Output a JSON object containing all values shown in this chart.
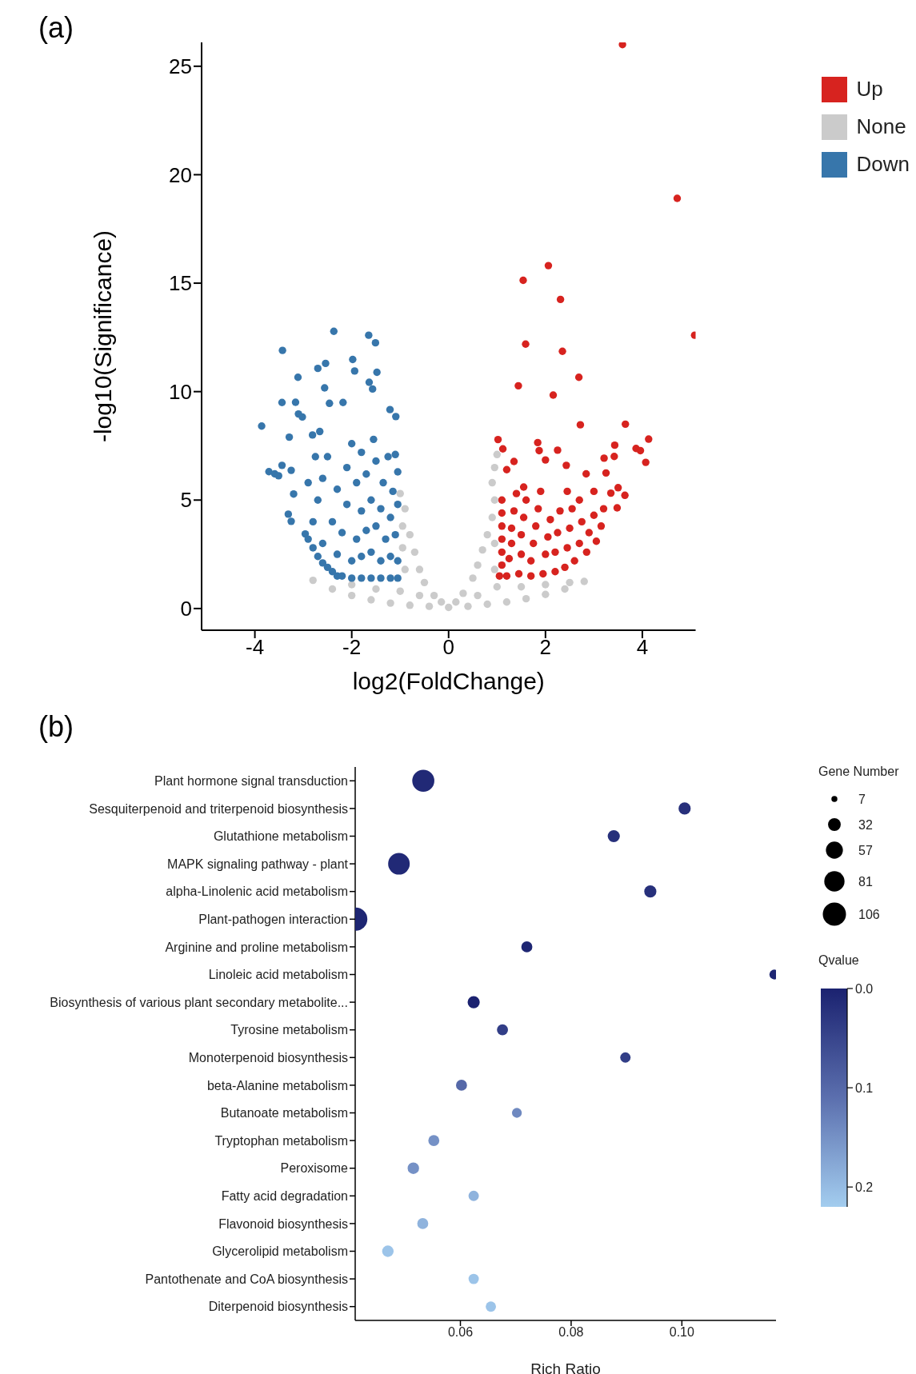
{
  "chart_data": [
    {
      "type": "scatter",
      "title": "(a)",
      "xlabel": "log2(FoldChange)",
      "ylabel": "-log10(Significance)",
      "xlim": [
        -5.1,
        5.1
      ],
      "xticks": [
        -4,
        -2,
        0,
        2,
        4
      ],
      "ylim": [
        -1,
        26.1
      ],
      "yticks": [
        0,
        5,
        10,
        15,
        20,
        25
      ],
      "legend": "top right",
      "marker": "circle",
      "series": [
        {
          "name": "Up",
          "color": "#d7231f",
          "x": [
            3.59,
            4.72,
            2.06,
            1.54,
            2.31,
            5.08,
            1.59,
            2.35,
            2.69,
            1.44,
            2.16,
            2.72,
            3.65,
            4.13,
            3.87,
            3.96,
            4.07,
            1.02,
            1.12,
            1.84,
            1.87,
            2.25,
            3.43,
            3.42,
            3.21,
            2.43,
            2.84,
            3.25,
            1.35,
            2.0,
            3.64,
            3.5,
            3.48,
            3.35,
            1.2,
            1.55,
            2.45,
            2.7,
            3.0,
            1.05,
            1.1,
            1.1,
            1.1,
            1.1,
            1.1,
            1.1,
            1.2,
            1.25,
            1.3,
            1.3,
            1.35,
            1.4,
            1.45,
            1.5,
            1.5,
            1.55,
            1.6,
            1.7,
            1.7,
            1.75,
            1.8,
            1.85,
            1.9,
            1.95,
            2.0,
            2.05,
            2.1,
            2.2,
            2.2,
            2.25,
            2.3,
            2.4,
            2.45,
            2.5,
            2.55,
            2.6,
            2.7,
            2.75,
            2.85,
            2.9,
            3.0,
            3.05,
            3.15,
            3.2
          ],
          "values": [
            26.0,
            18.91,
            15.81,
            15.13,
            14.25,
            12.6,
            12.19,
            11.86,
            10.66,
            10.27,
            9.84,
            8.47,
            8.5,
            7.81,
            7.38,
            7.28,
            6.74,
            7.79,
            7.36,
            7.65,
            7.28,
            7.3,
            7.53,
            7.01,
            6.93,
            6.6,
            6.21,
            6.25,
            6.78,
            6.85,
            5.22,
            5.57,
            4.64,
            5.32,
            6.4,
            5.6,
            5.4,
            5.0,
            5.4,
            1.5,
            2.0,
            2.6,
            3.2,
            3.8,
            4.4,
            5.0,
            1.5,
            2.3,
            3.0,
            3.7,
            4.5,
            5.3,
            1.6,
            2.5,
            3.4,
            4.2,
            5.0,
            1.5,
            2.2,
            3.0,
            3.8,
            4.6,
            5.4,
            1.6,
            2.5,
            3.3,
            4.1,
            1.7,
            2.6,
            3.5,
            4.5,
            1.9,
            2.8,
            3.7,
            4.6,
            2.2,
            3.0,
            4.0,
            2.6,
            3.5,
            4.3,
            3.1,
            3.8,
            4.6
          ]
        },
        {
          "name": "None",
          "color": "#cbcbcb",
          "x": [
            -2.8,
            -2.4,
            -2.0,
            -1.6,
            -1.2,
            -0.8,
            -0.4,
            0,
            0.4,
            0.8,
            1.2,
            1.6,
            2.0,
            2.4,
            2.8,
            -2.0,
            -1.5,
            -1.0,
            -0.9,
            -0.95,
            -0.95,
            -0.9,
            -0.8,
            -0.7,
            -0.6,
            -0.5,
            -0.3,
            -0.15,
            0.15,
            0.3,
            0.5,
            0.6,
            0.7,
            0.8,
            0.9,
            0.95,
            0.9,
            0.95,
            1.0,
            0.95,
            0.95,
            1.0,
            1.5,
            2.0,
            2.5,
            -0.6,
            0.6,
            -1.0
          ],
          "values": [
            1.3,
            0.9,
            0.6,
            0.4,
            0.25,
            0.15,
            0.1,
            0.05,
            0.1,
            0.2,
            0.3,
            0.45,
            0.65,
            0.9,
            1.25,
            1.1,
            0.9,
            0.8,
            1.8,
            2.8,
            3.8,
            4.6,
            3.4,
            2.6,
            1.8,
            1.2,
            0.6,
            0.3,
            0.3,
            0.7,
            1.4,
            2.0,
            2.7,
            3.4,
            4.2,
            5.0,
            5.8,
            6.5,
            7.1,
            3.0,
            1.8,
            1.0,
            1.0,
            1.1,
            1.2,
            0.6,
            0.6,
            5.3
          ]
        },
        {
          "name": "Down",
          "color": "#3776ab",
          "x": [
            -2.37,
            -1.65,
            -1.51,
            -3.43,
            -1.98,
            -2.54,
            -2.7,
            -1.94,
            -1.48,
            -3.11,
            -1.64,
            -2.56,
            -1.57,
            -3.44,
            -3.16,
            -2.46,
            -2.18,
            -3.86,
            -3.71,
            -3.59,
            -3.51,
            -3.44,
            -3.25,
            -3.29,
            -3.1,
            -3.02,
            -3.2,
            -3.31,
            -3.25,
            -2.96,
            -1.21,
            -1.09,
            -2.81,
            -2.66,
            -2.9,
            -2.8,
            -2.7,
            -2.6,
            -2.5,
            -2.4,
            -2.3,
            -2.2,
            -2.0,
            -1.8,
            -1.6,
            -1.4,
            -1.2,
            -1.05,
            -2.8,
            -2.7,
            -2.6,
            -2.5,
            -2.6,
            -2.4,
            -2.3,
            -2.3,
            -2.2,
            -2.1,
            -2.1,
            -2.0,
            -2.0,
            -1.9,
            -1.9,
            -1.8,
            -1.8,
            -1.8,
            -1.7,
            -1.7,
            -1.6,
            -1.6,
            -1.55,
            -1.5,
            -1.5,
            -1.4,
            -1.4,
            -1.35,
            -1.3,
            -1.25,
            -1.2,
            -1.2,
            -1.15,
            -1.1,
            -1.05,
            -1.05,
            -1.05,
            -1.1,
            -2.9,
            -2.75
          ],
          "values": [
            12.78,
            12.6,
            12.25,
            11.9,
            11.48,
            11.3,
            11.07,
            10.95,
            10.89,
            10.66,
            10.43,
            10.17,
            10.12,
            9.5,
            9.51,
            9.46,
            9.5,
            8.41,
            6.31,
            6.21,
            6.12,
            6.6,
            6.37,
            7.9,
            8.97,
            8.83,
            5.28,
            4.35,
            4.02,
            3.44,
            9.17,
            8.85,
            8.0,
            8.16,
            3.2,
            2.8,
            2.4,
            2.1,
            1.9,
            1.7,
            1.5,
            1.5,
            1.4,
            1.4,
            1.4,
            1.4,
            1.4,
            1.4,
            4.0,
            5.0,
            6.0,
            7.0,
            3.0,
            4.0,
            5.5,
            2.5,
            3.5,
            4.8,
            6.5,
            7.6,
            2.2,
            3.2,
            5.8,
            4.5,
            7.2,
            2.4,
            3.6,
            6.2,
            5.0,
            2.6,
            7.8,
            3.8,
            6.8,
            2.2,
            4.6,
            5.8,
            3.2,
            7.0,
            2.4,
            4.2,
            5.4,
            3.4,
            2.2,
            4.8,
            6.3,
            7.1,
            5.8,
            7.0
          ]
        }
      ]
    },
    {
      "type": "bubble",
      "title": "(b)",
      "xlabel": "Rich Ratio",
      "legend_title": "Gene Number",
      "clabel": "Qvalue",
      "orientation": "horizontal",
      "categories": [
        "Plant hormone signal transduction",
        "Sesquiterpenoid and triterpenoid biosynthesis",
        "Glutathione metabolism",
        "MAPK signaling pathway - plant",
        "alpha-Linolenic acid metabolism",
        "Plant-pathogen interaction",
        "Arginine and proline metabolism",
        "Linoleic acid metabolism",
        "Biosynthesis of various plant secondary metabolite...",
        "Tyrosine metabolism",
        "Monoterpenoid biosynthesis",
        "beta-Alanine metabolism",
        "Butanoate metabolism",
        "Tryptophan metabolism",
        "Peroxisome",
        "Fatty acid degradation",
        "Flavonoid biosynthesis",
        "Glycerolipid metabolism",
        "Pantothenate and CoA biosynthesis",
        "Diterpenoid biosynthesis"
      ],
      "values": [
        0.0533,
        0.1005,
        0.0877,
        0.0489,
        0.0943,
        0.0411,
        0.072,
        0.1167,
        0.0624,
        0.0676,
        0.0898,
        0.0602,
        0.0702,
        0.0552,
        0.0515,
        0.0624,
        0.0532,
        0.0469,
        0.0624,
        0.0655
      ],
      "sizes": [
        96,
        29,
        29,
        92,
        29,
        106,
        24,
        19,
        29,
        24,
        21,
        24,
        19,
        24,
        26,
        21,
        24,
        26,
        21,
        21
      ],
      "size_legend": [
        7,
        32,
        57,
        81,
        106
      ],
      "cvalues": [
        0.01,
        0.02,
        0.02,
        0.01,
        0.02,
        0.005,
        0.005,
        0.005,
        0.0,
        0.04,
        0.04,
        0.1,
        0.14,
        0.15,
        0.15,
        0.19,
        0.19,
        0.21,
        0.21,
        0.21
      ],
      "clim": [
        0,
        0.22
      ],
      "cticks": [
        {
          "value": 0,
          "label": "0.0"
        },
        0.1,
        0.2
      ],
      "xlim": [
        0.041,
        0.117
      ],
      "xticks": [
        0.06,
        0.08,
        {
          "value": 0.1,
          "label": "0.10"
        }
      ]
    }
  ]
}
